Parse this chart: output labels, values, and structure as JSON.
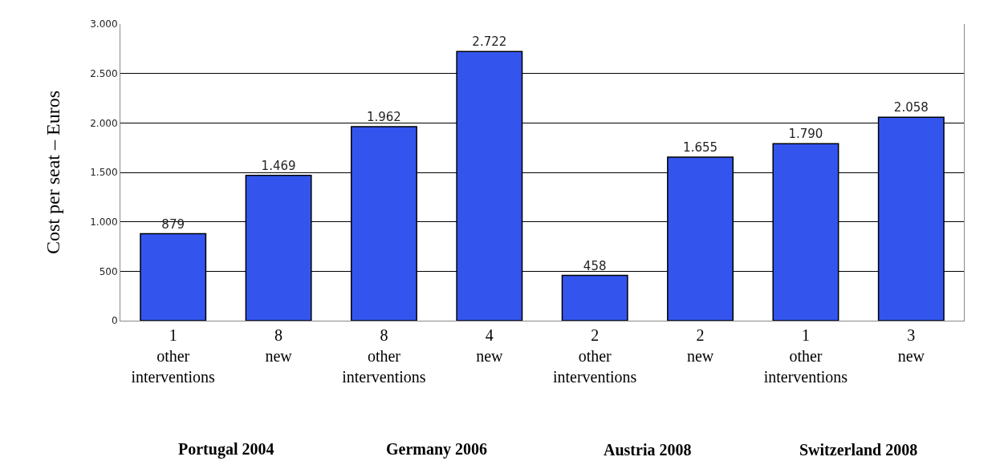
{
  "chart_data": {
    "type": "bar",
    "ylabel": "Cost per seat – Euros",
    "categories": [
      "1 other interventions",
      "8 new",
      "8 other interventions",
      "4 new",
      "2 other interventions",
      "2 new",
      "1 other interventions",
      "3 new"
    ],
    "values": [
      879,
      1469,
      1962,
      2722,
      458,
      1655,
      1790,
      2058
    ],
    "value_labels": [
      "879",
      "1.469",
      "1.962",
      "2.722",
      "458",
      "1.655",
      "1.790",
      "2.058"
    ],
    "color": "#3355ee",
    "ylim": [
      0,
      3000
    ],
    "yticks": [
      0,
      {
        "value": 500,
        "label": "500"
      },
      {
        "value": 1000,
        "label": "1.000"
      },
      {
        "value": 1500,
        "label": "1.500"
      },
      {
        "value": 2000,
        "label": "2.000"
      },
      {
        "value": 2500,
        "label": "2.500"
      },
      {
        "value": 3000,
        "label": "3.000"
      }
    ],
    "grid": "y",
    "annotations": [
      "Portugal 2004",
      "Germany 2006",
      "Austria 2008",
      "Switzerland 2008"
    ]
  }
}
